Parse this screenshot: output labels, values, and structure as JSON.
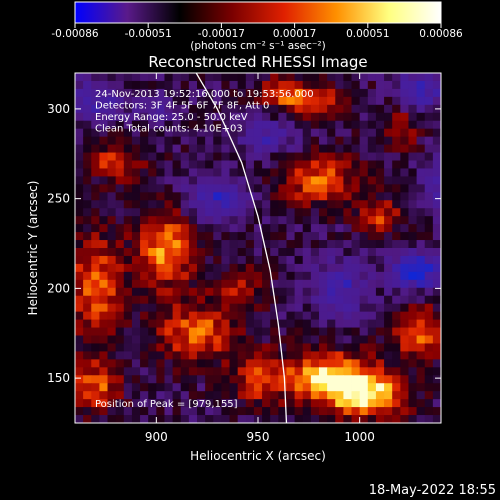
{
  "colorbar": {
    "ticks": [
      "-0.00086",
      "-0.00051",
      "-0.00017",
      "0.00017",
      "0.00051",
      "0.00086"
    ],
    "unit_label": "(photons cm⁻² s⁻¹ asec⁻²)",
    "colors": [
      "#0000ff",
      "#5a1a8a",
      "#000000",
      "#7a0000",
      "#e02000",
      "#ff9000",
      "#ffff80",
      "#ffffff"
    ]
  },
  "footer": {
    "timestamp": "18-May-2022 18:55"
  },
  "chart_data": {
    "type": "heatmap",
    "title": "Reconstructed RHESSI Image",
    "xlabel": "Heliocentric X (arcsec)",
    "ylabel": "Heliocentric Y (arcsec)",
    "xlim": [
      860,
      1040
    ],
    "ylim": [
      125,
      320
    ],
    "x_ticks": [
      900,
      950,
      1000
    ],
    "y_ticks": [
      150,
      200,
      250,
      300
    ],
    "annotations": [
      "24-Nov-2013 19:52:16.000 to 19:53:56.000",
      "Detectors: 3F 4F 5F 6F 7F 8F, Att 0",
      "Energy Range: 25.0 - 50.0 keV",
      "Clean     Total counts: 4.10E+03"
    ],
    "peak_label": "Position of Peak = [979,155]",
    "peak": {
      "x": 979,
      "y": 155
    },
    "limb": [
      [
        917,
        325
      ],
      [
        930,
        300
      ],
      [
        942,
        270
      ],
      [
        950,
        240
      ],
      [
        956,
        210
      ],
      [
        960,
        180
      ],
      [
        963,
        150
      ],
      [
        964,
        125
      ]
    ],
    "blobs": [
      {
        "x": 985,
        "y": 150,
        "rx": 22,
        "ry": 14,
        "v": 1.0
      },
      {
        "x": 1005,
        "y": 140,
        "rx": 18,
        "ry": 12,
        "v": 0.85
      },
      {
        "x": 905,
        "y": 222,
        "rx": 14,
        "ry": 22,
        "v": 0.75
      },
      {
        "x": 870,
        "y": 200,
        "rx": 14,
        "ry": 30,
        "v": 0.65
      },
      {
        "x": 920,
        "y": 175,
        "rx": 20,
        "ry": 16,
        "v": 0.65
      },
      {
        "x": 870,
        "y": 145,
        "rx": 12,
        "ry": 14,
        "v": 0.6
      },
      {
        "x": 980,
        "y": 260,
        "rx": 20,
        "ry": 14,
        "v": 0.6
      },
      {
        "x": 1030,
        "y": 175,
        "rx": 12,
        "ry": 14,
        "v": 0.7
      },
      {
        "x": 1010,
        "y": 240,
        "rx": 10,
        "ry": 10,
        "v": 0.55
      },
      {
        "x": 975,
        "y": 305,
        "rx": 16,
        "ry": 10,
        "v": 0.6
      },
      {
        "x": 880,
        "y": 270,
        "rx": 16,
        "ry": 10,
        "v": 0.5
      },
      {
        "x": 940,
        "y": 200,
        "rx": 12,
        "ry": 12,
        "v": 0.45
      },
      {
        "x": 950,
        "y": 150,
        "rx": 12,
        "ry": 14,
        "v": 0.55
      },
      {
        "x": 1020,
        "y": 290,
        "rx": 10,
        "ry": 12,
        "v": 0.4
      },
      {
        "x": 960,
        "y": 310,
        "rx": 10,
        "ry": 8,
        "v": 0.4
      },
      {
        "x": 1028,
        "y": 210,
        "rx": 12,
        "ry": 10,
        "v": -0.9
      },
      {
        "x": 990,
        "y": 200,
        "rx": 14,
        "ry": 16,
        "v": -0.55
      },
      {
        "x": 930,
        "y": 250,
        "rx": 16,
        "ry": 12,
        "v": -0.6
      },
      {
        "x": 955,
        "y": 285,
        "rx": 14,
        "ry": 10,
        "v": -0.5
      },
      {
        "x": 1030,
        "y": 310,
        "rx": 12,
        "ry": 12,
        "v": -0.6
      },
      {
        "x": 870,
        "y": 305,
        "rx": 14,
        "ry": 12,
        "v": -0.5
      },
      {
        "x": 1040,
        "y": 260,
        "rx": 10,
        "ry": 14,
        "v": -0.55
      },
      {
        "x": 900,
        "y": 300,
        "rx": 10,
        "ry": 8,
        "v": -0.4
      }
    ]
  }
}
